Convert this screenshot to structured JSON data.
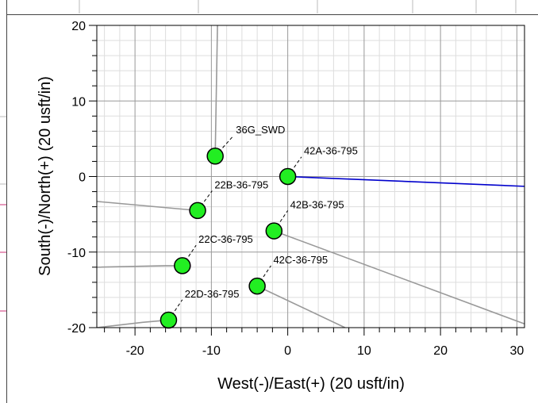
{
  "chart_data": {
    "type": "scatter",
    "xlabel": "West(-)/East(+) (20 usft/in)",
    "ylabel": "South(-)/North(+) (20 usft/in)",
    "xlim": [
      -25,
      31
    ],
    "ylim": [
      -20,
      20
    ],
    "x_ticks": [
      -20,
      -10,
      0,
      10,
      20,
      30
    ],
    "y_ticks": [
      -20,
      -10,
      0,
      10,
      20
    ],
    "x_tick_labels": [
      "-20",
      "-10",
      "0",
      "10",
      "20",
      "30"
    ],
    "y_tick_labels": [
      "-20",
      "-10",
      "0",
      "10",
      "20"
    ],
    "grid": true,
    "legend": "none",
    "colors": {
      "marker_fill": "#22ee22",
      "marker_stroke": "#000000",
      "trajectory": "#999999",
      "highlight_trajectory": "#0000cc",
      "grid_major": "#999999",
      "grid_minor": "#dddddd",
      "side_marks": "#cc3377"
    },
    "wells": [
      {
        "name": "36G_SWD",
        "x": -9.5,
        "y": 2.7,
        "label_x": -7.1,
        "label_y": 5.4,
        "path": [
          [
            -9.5,
            2.7
          ],
          [
            -9.2,
            20
          ]
        ]
      },
      {
        "name": "42A-36-795",
        "x": 0.0,
        "y": 0.0,
        "label_x": 1.8,
        "label_y": 2.6,
        "path": [
          [
            0.0,
            0.0
          ],
          [
            31,
            -1.3
          ]
        ],
        "highlight": true
      },
      {
        "name": "22B-36-795",
        "x": -11.8,
        "y": -4.5,
        "label_x": -9.9,
        "label_y": -1.9,
        "path": [
          [
            -11.8,
            -4.5
          ],
          [
            -25,
            -3.3
          ]
        ]
      },
      {
        "name": "42B-36-795",
        "x": -1.8,
        "y": -7.2,
        "label_x": 0.0,
        "label_y": -4.5,
        "path": [
          [
            -1.8,
            -7.2
          ],
          [
            31,
            -19.5
          ]
        ]
      },
      {
        "name": "22C-36-795",
        "x": -13.8,
        "y": -11.8,
        "label_x": -12.0,
        "label_y": -9.1,
        "path": [
          [
            -13.8,
            -11.8
          ],
          [
            -16.0,
            -11.8
          ],
          [
            -25,
            -12.0
          ]
        ]
      },
      {
        "name": "42C-36-795",
        "x": -4.0,
        "y": -14.5,
        "label_x": -2.2,
        "label_y": -11.8,
        "path": [
          [
            -4.0,
            -14.5
          ],
          [
            7.5,
            -20
          ]
        ]
      },
      {
        "name": "22D-36-795",
        "x": -15.6,
        "y": -19.0,
        "label_x": -13.8,
        "label_y": -16.3,
        "path": [
          [
            -15.6,
            -19.0
          ],
          [
            -19.0,
            -19.3
          ],
          [
            -25,
            -20
          ]
        ]
      }
    ]
  }
}
